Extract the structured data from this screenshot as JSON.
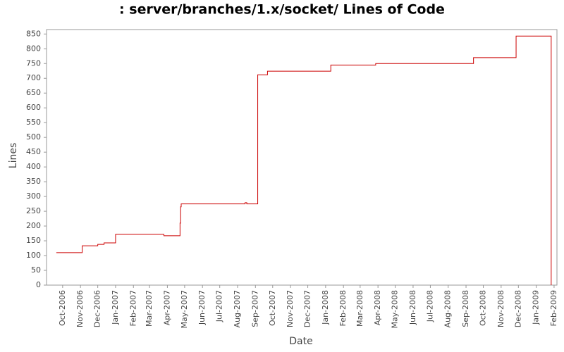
{
  "chart_data": {
    "type": "line",
    "step": "post",
    "title": ": server/branches/1.x/socket/ Lines of Code",
    "x_label": "Date",
    "y_label": "Lines",
    "x": [
      "2006-09-20",
      "2006-11-04",
      "2006-12-01",
      "2006-12-12",
      "2007-01-01",
      "2007-03-26",
      "2007-04-23",
      "2007-04-24",
      "2007-04-25",
      "2007-08-14",
      "2007-08-17",
      "2007-09-05",
      "2007-09-22",
      "2008-01-10",
      "2008-03-28",
      "2008-09-14",
      "2008-11-27",
      "2009-01-27"
    ],
    "series": [
      {
        "name": "Lines",
        "color": "#cc0000",
        "values": [
          110,
          133,
          138,
          143,
          172,
          167,
          210,
          265,
          275,
          279,
          275,
          712,
          724,
          745,
          750,
          770,
          843,
          0
        ]
      }
    ],
    "xlim": [
      "2006-09-03",
      "2009-02-06"
    ],
    "xticks": [
      {
        "value": "2006-10-01",
        "label": "Oct-2006"
      },
      {
        "value": "2006-11-01",
        "label": "Nov-2006"
      },
      {
        "value": "2006-12-01",
        "label": "Dec-2006"
      },
      {
        "value": "2007-01-01",
        "label": "Jan-2007"
      },
      {
        "value": "2007-02-01",
        "label": "Feb-2007"
      },
      {
        "value": "2007-03-01",
        "label": "Mar-2007"
      },
      {
        "value": "2007-04-01",
        "label": "Apr-2007"
      },
      {
        "value": "2007-05-01",
        "label": "May-2007"
      },
      {
        "value": "2007-06-01",
        "label": "Jun-2007"
      },
      {
        "value": "2007-07-01",
        "label": "Jul-2007"
      },
      {
        "value": "2007-08-01",
        "label": "Aug-2007"
      },
      {
        "value": "2007-09-01",
        "label": "Sep-2007"
      },
      {
        "value": "2007-10-01",
        "label": "Oct-2007"
      },
      {
        "value": "2007-11-01",
        "label": "Nov-2007"
      },
      {
        "value": "2007-12-01",
        "label": "Dec-2007"
      },
      {
        "value": "2008-01-01",
        "label": "Jan-2008"
      },
      {
        "value": "2008-02-01",
        "label": "Feb-2008"
      },
      {
        "value": "2008-03-01",
        "label": "Mar-2008"
      },
      {
        "value": "2008-04-01",
        "label": "Apr-2008"
      },
      {
        "value": "2008-05-01",
        "label": "May-2008"
      },
      {
        "value": "2008-06-01",
        "label": "Jun-2008"
      },
      {
        "value": "2008-07-01",
        "label": "Jul-2008"
      },
      {
        "value": "2008-08-01",
        "label": "Aug-2008"
      },
      {
        "value": "2008-09-01",
        "label": "Sep-2008"
      },
      {
        "value": "2008-10-01",
        "label": "Oct-2008"
      },
      {
        "value": "2008-11-01",
        "label": "Nov-2008"
      },
      {
        "value": "2008-12-01",
        "label": "Dec-2008"
      },
      {
        "value": "2009-01-01",
        "label": "Jan-2009"
      },
      {
        "value": "2009-02-01",
        "label": "Feb-2009"
      }
    ],
    "ylim": [
      0,
      865
    ],
    "yticks": [
      0,
      50,
      100,
      150,
      200,
      250,
      300,
      350,
      400,
      450,
      500,
      550,
      600,
      650,
      700,
      750,
      800,
      850
    ],
    "grid": false
  }
}
